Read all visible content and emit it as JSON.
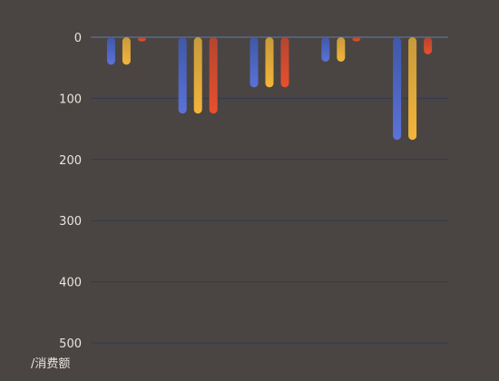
{
  "chart_data": {
    "type": "bar",
    "ylabel": "/消费额",
    "ylim": [
      0,
      500
    ],
    "y_inverted": true,
    "yticks": [
      "0",
      "100",
      "200",
      "300",
      "400",
      "500"
    ],
    "grid": true,
    "categories": [
      "",
      "",
      "",
      "",
      ""
    ],
    "series": [
      {
        "values": [
          45,
          125,
          82,
          40,
          168
        ]
      },
      {
        "values": [
          45,
          125,
          82,
          40,
          168
        ]
      },
      {
        "values": [
          6,
          125,
          82,
          2,
          28
        ]
      }
    ],
    "colors": {
      "series_gradients": [
        [
          "#5b72d9",
          "#3f58a8"
        ],
        [
          "#f3b53a",
          "#c79a3a"
        ],
        [
          "#e8502e",
          "#b5452f"
        ]
      ],
      "grid": "#2e3a55",
      "zero_line": "#5b6a86",
      "text": "#e8e4e0",
      "background": "#4a4542"
    }
  }
}
